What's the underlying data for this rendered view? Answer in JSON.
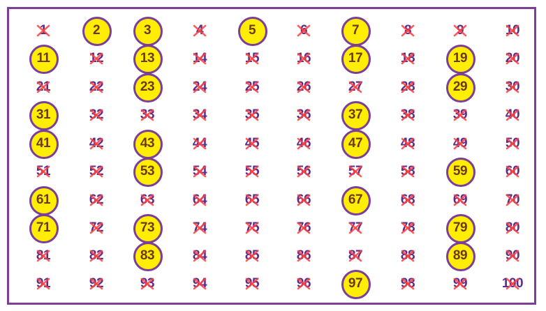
{
  "colors": {
    "frame": "#7b3f99",
    "fill": "#ffee00",
    "primeText": "#6b3a1a",
    "plain": "#5a2d8a",
    "cross": "#ff4040"
  },
  "primes": [
    2,
    3,
    5,
    7,
    11,
    13,
    17,
    19,
    23,
    29,
    31,
    37,
    41,
    43,
    47,
    53,
    59,
    61,
    67,
    71,
    73,
    79,
    83,
    89,
    97
  ],
  "cells": []
}
